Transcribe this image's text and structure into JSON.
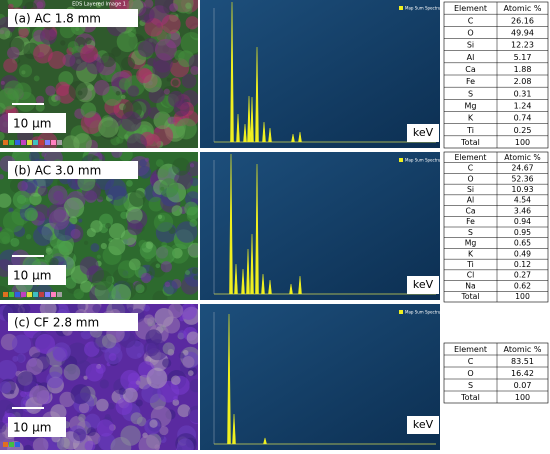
{
  "title_bar": "EDS Layered Image 1",
  "panels": [
    {
      "label": "(a) AC 1.8 mm",
      "scale": "10 µm",
      "spectrum_legend": "Map Sum Spectrum",
      "axis_unit": "keV",
      "table": {
        "header": [
          "Element",
          "Atomic %"
        ],
        "rows": [
          [
            "C",
            "26.16"
          ],
          [
            "O",
            "49.94"
          ],
          [
            "Si",
            "12.23"
          ],
          [
            "Al",
            "5.17"
          ],
          [
            "Ca",
            "1.88"
          ],
          [
            "Fe",
            "2.08"
          ],
          [
            "S",
            "0.31"
          ],
          [
            "Mg",
            "1.24"
          ],
          [
            "K",
            "0.74"
          ],
          [
            "Ti",
            "0.25"
          ],
          [
            "Total",
            "100"
          ]
        ]
      }
    },
    {
      "label": "(b) AC 3.0 mm",
      "scale": "10 µm",
      "spectrum_legend": "Map Sum Spectrum",
      "axis_unit": "keV",
      "table": {
        "header": [
          "Element",
          "Atomic %"
        ],
        "rows": [
          [
            "C",
            "24.67"
          ],
          [
            "O",
            "52.36"
          ],
          [
            "Si",
            "10.93"
          ],
          [
            "Al",
            "4.54"
          ],
          [
            "Ca",
            "3.46"
          ],
          [
            "Fe",
            "0.94"
          ],
          [
            "S",
            "0.95"
          ],
          [
            "Mg",
            "0.65"
          ],
          [
            "K",
            "0.49"
          ],
          [
            "Ti",
            "0.12"
          ],
          [
            "Cl",
            "0.27"
          ],
          [
            "Na",
            "0.62"
          ],
          [
            "Total",
            "100"
          ]
        ]
      }
    },
    {
      "label": "(c) CF 2.8 mm",
      "scale": "10 µm",
      "spectrum_legend": "Map Sum Spectrum",
      "axis_unit": "keV",
      "table": {
        "header": [
          "Element",
          "Atomic %"
        ],
        "rows": [
          [
            "C",
            "83.51"
          ],
          [
            "O",
            "16.42"
          ],
          [
            "S",
            "0.07"
          ],
          [
            "Total",
            "100"
          ]
        ]
      }
    }
  ]
}
